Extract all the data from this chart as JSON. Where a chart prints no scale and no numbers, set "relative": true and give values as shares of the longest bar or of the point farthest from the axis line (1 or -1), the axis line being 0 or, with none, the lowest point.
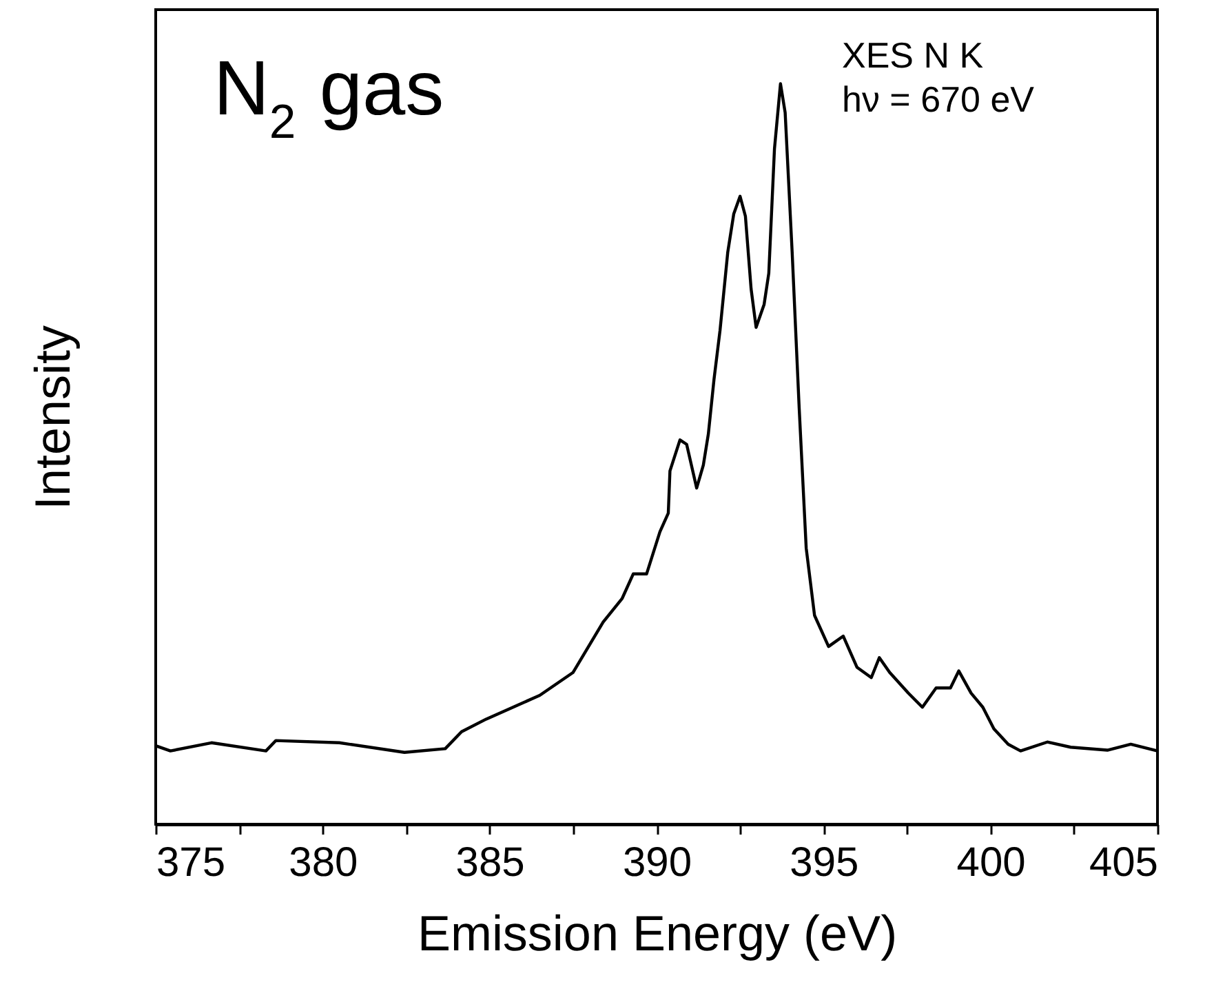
{
  "chart_data": {
    "type": "line",
    "relative": true,
    "xlabel": "Emission Energy (eV)",
    "ylabel": "Intensity",
    "annotations": [
      "N$_{2}$ gas",
      "XES N K",
      "hν = 670 eV"
    ],
    "xlim": [
      375,
      405
    ],
    "xticks": [
      375,
      {
        "value": 377.5,
        "label": null
      },
      380,
      {
        "value": 382.5,
        "label": null
      },
      385,
      {
        "value": 387.5,
        "label": null
      },
      390,
      {
        "value": 392.5,
        "label": null
      },
      395,
      {
        "value": 397.5,
        "label": null
      },
      400,
      {
        "value": 402.5,
        "label": null
      },
      405
    ],
    "grid": false,
    "line_style": "solid",
    "marker": "none",
    "series": [
      {
        "color": "#000000",
        "x": [
          375.0,
          375.44,
          376.67,
          378.3,
          378.6,
          380.5,
          382.45,
          383.67,
          384.16,
          384.9,
          385.7,
          386.5,
          387.5,
          388.4,
          388.97,
          389.3,
          389.7,
          390.1,
          390.35,
          390.4,
          390.7,
          390.9,
          391.2,
          391.4,
          391.55,
          391.72,
          391.9,
          392.13,
          392.31,
          392.5,
          392.66,
          392.83,
          392.98,
          393.22,
          393.36,
          393.53,
          393.71,
          393.85,
          394.06,
          394.27,
          394.48,
          394.73,
          395.15,
          395.59,
          396.0,
          396.43,
          396.67,
          396.98,
          397.54,
          397.96,
          398.37,
          398.8,
          399.05,
          399.42,
          399.77,
          400.1,
          400.53,
          400.9,
          401.7,
          402.4,
          403.5,
          404.2,
          405.0
        ],
        "values": [
          0.106,
          0.099,
          0.11,
          0.099,
          0.113,
          0.11,
          0.097,
          0.102,
          0.125,
          0.142,
          0.158,
          0.174,
          0.205,
          0.273,
          0.305,
          0.338,
          0.338,
          0.395,
          0.42,
          0.477,
          0.519,
          0.513,
          0.454,
          0.485,
          0.527,
          0.601,
          0.667,
          0.772,
          0.824,
          0.848,
          0.821,
          0.723,
          0.671,
          0.702,
          0.744,
          0.912,
          1,
          0.961,
          0.772,
          0.562,
          0.373,
          0.282,
          0.24,
          0.254,
          0.212,
          0.198,
          0.225,
          0.205,
          0.177,
          0.158,
          0.184,
          0.184,
          0.207,
          0.177,
          0.158,
          0.129,
          0.108,
          0.099,
          0.111,
          0.104,
          0.1,
          0.108,
          0.099
        ]
      }
    ]
  }
}
